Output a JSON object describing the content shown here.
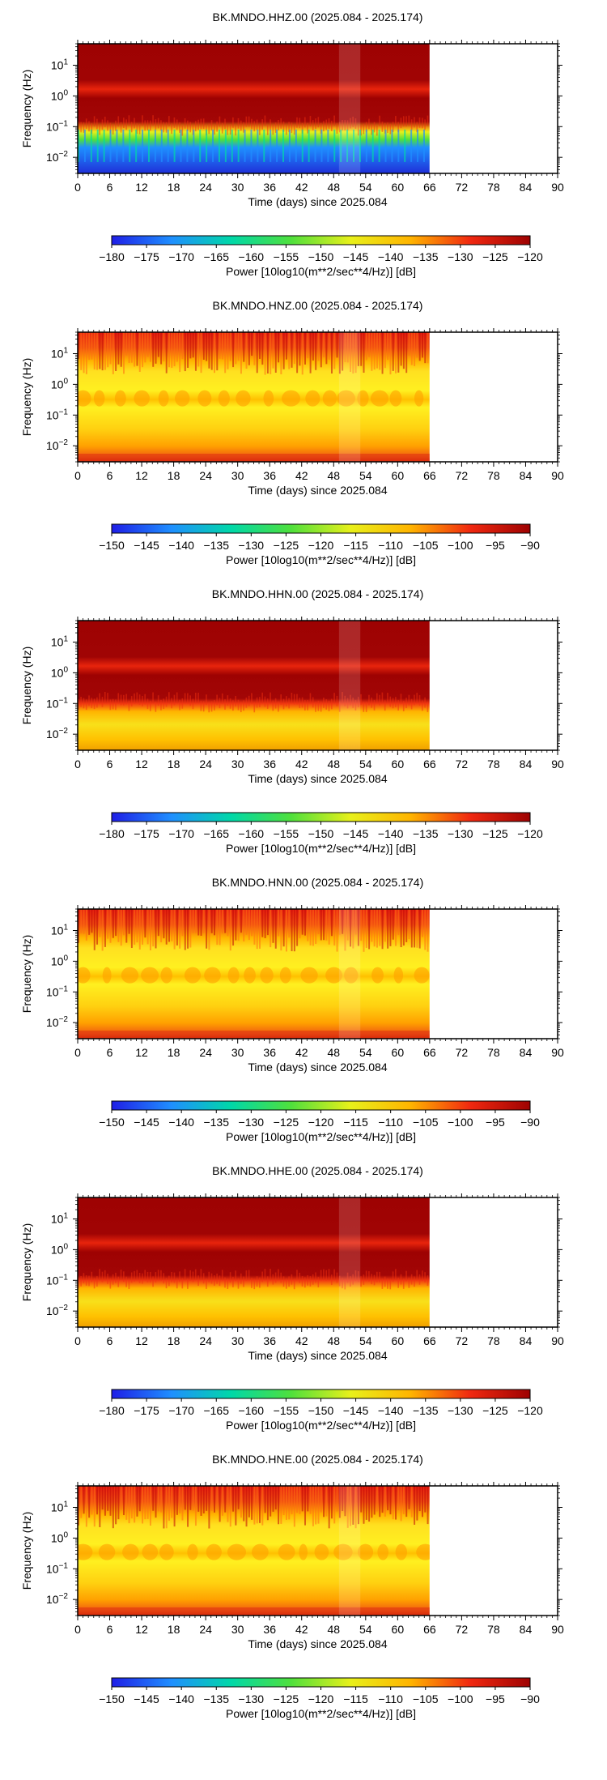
{
  "chart_data": [
    {
      "type": "heatmap",
      "title": "BK.MNDO.HHZ.00 (2025.084 - 2025.174)",
      "xlabel": "Time (days) since 2025.084",
      "ylabel": "Frequency (Hz)",
      "x_ticks": [
        "0",
        "6",
        "12",
        "18",
        "24",
        "30",
        "36",
        "42",
        "48",
        "54",
        "60",
        "66",
        "72",
        "78",
        "84",
        "90"
      ],
      "xlim": [
        0,
        90
      ],
      "y_scale": "log",
      "y_ticks": [
        "10^-2",
        "10^-1",
        "10^0",
        "10^1"
      ],
      "ylim": [
        0.003,
        50
      ],
      "data_extent_days": [
        0,
        66
      ],
      "colorbar": {
        "label": "Power [10log10(m**2/sec**4/Hz)] [dB]",
        "ticks": [
          "-180",
          "-175",
          "-170",
          "-165",
          "-160",
          "-155",
          "-150",
          "-145",
          "-140",
          "-135",
          "-130",
          "-125",
          "-120"
        ],
        "range": [
          -180,
          -120
        ],
        "colors": [
          "#1f1ee6",
          "#1f8fff",
          "#00d8a8",
          "#4fe03c",
          "#e8f01a",
          "#ffb400",
          "#f02810",
          "#9e0202"
        ]
      },
      "colormap": "spectral"
    },
    {
      "type": "heatmap",
      "title": "BK.MNDO.HNZ.00 (2025.084 - 2025.174)",
      "xlabel": "Time (days) since 2025.084",
      "ylabel": "Frequency (Hz)",
      "x_ticks": [
        "0",
        "6",
        "12",
        "18",
        "24",
        "30",
        "36",
        "42",
        "48",
        "54",
        "60",
        "66",
        "72",
        "78",
        "84",
        "90"
      ],
      "xlim": [
        0,
        90
      ],
      "y_scale": "log",
      "y_ticks": [
        "10^-2",
        "10^-1",
        "10^0",
        "10^1"
      ],
      "ylim": [
        0.003,
        50
      ],
      "data_extent_days": [
        0,
        66
      ],
      "colorbar": {
        "label": "Power [10log10(m**2/sec**4/Hz)] [dB]",
        "ticks": [
          "-150",
          "-145",
          "-140",
          "-135",
          "-130",
          "-125",
          "-120",
          "-115",
          "-110",
          "-105",
          "-100",
          "-95",
          "-90"
        ],
        "range": [
          -150,
          -90
        ],
        "colors": [
          "#1f1ee6",
          "#1f8fff",
          "#00d8a8",
          "#4fe03c",
          "#e8f01a",
          "#ffb400",
          "#f02810",
          "#9e0202"
        ]
      },
      "colormap": "accel"
    },
    {
      "type": "heatmap",
      "title": "BK.MNDO.HHN.00 (2025.084 - 2025.174)",
      "xlabel": "Time (days) since 2025.084",
      "ylabel": "Frequency (Hz)",
      "x_ticks": [
        "0",
        "6",
        "12",
        "18",
        "24",
        "30",
        "36",
        "42",
        "48",
        "54",
        "60",
        "66",
        "72",
        "78",
        "84",
        "90"
      ],
      "xlim": [
        0,
        90
      ],
      "y_scale": "log",
      "y_ticks": [
        "10^-2",
        "10^-1",
        "10^0",
        "10^1"
      ],
      "ylim": [
        0.003,
        50
      ],
      "data_extent_days": [
        0,
        66
      ],
      "colorbar": {
        "label": "Power [10log10(m**2/sec**4/Hz)] [dB]",
        "ticks": [
          "-180",
          "-175",
          "-170",
          "-165",
          "-160",
          "-155",
          "-150",
          "-145",
          "-140",
          "-135",
          "-130",
          "-125",
          "-120"
        ],
        "range": [
          -180,
          -120
        ],
        "colors": [
          "#1f1ee6",
          "#1f8fff",
          "#00d8a8",
          "#4fe03c",
          "#e8f01a",
          "#ffb400",
          "#f02810",
          "#9e0202"
        ]
      },
      "colormap": "horiz"
    },
    {
      "type": "heatmap",
      "title": "BK.MNDO.HNN.00 (2025.084 - 2025.174)",
      "xlabel": "Time (days) since 2025.084",
      "ylabel": "Frequency (Hz)",
      "x_ticks": [
        "0",
        "6",
        "12",
        "18",
        "24",
        "30",
        "36",
        "42",
        "48",
        "54",
        "60",
        "66",
        "72",
        "78",
        "84",
        "90"
      ],
      "xlim": [
        0,
        90
      ],
      "y_scale": "log",
      "y_ticks": [
        "10^-2",
        "10^-1",
        "10^0",
        "10^1"
      ],
      "ylim": [
        0.003,
        50
      ],
      "data_extent_days": [
        0,
        66
      ],
      "colorbar": {
        "label": "Power [10log10(m**2/sec**4/Hz)] [dB]",
        "ticks": [
          "-150",
          "-145",
          "-140",
          "-135",
          "-130",
          "-125",
          "-120",
          "-115",
          "-110",
          "-105",
          "-100",
          "-95",
          "-90"
        ],
        "range": [
          -150,
          -90
        ],
        "colors": [
          "#1f1ee6",
          "#1f8fff",
          "#00d8a8",
          "#4fe03c",
          "#e8f01a",
          "#ffb400",
          "#f02810",
          "#9e0202"
        ]
      },
      "colormap": "accel"
    },
    {
      "type": "heatmap",
      "title": "BK.MNDO.HHE.00 (2025.084 - 2025.174)",
      "xlabel": "Time (days) since 2025.084",
      "ylabel": "Frequency (Hz)",
      "x_ticks": [
        "0",
        "6",
        "12",
        "18",
        "24",
        "30",
        "36",
        "42",
        "48",
        "54",
        "60",
        "66",
        "72",
        "78",
        "84",
        "90"
      ],
      "xlim": [
        0,
        90
      ],
      "y_scale": "log",
      "y_ticks": [
        "10^-2",
        "10^-1",
        "10^0",
        "10^1"
      ],
      "ylim": [
        0.003,
        50
      ],
      "data_extent_days": [
        0,
        66
      ],
      "colorbar": {
        "label": "Power [10log10(m**2/sec**4/Hz)] [dB]",
        "ticks": [
          "-180",
          "-175",
          "-170",
          "-165",
          "-160",
          "-155",
          "-150",
          "-145",
          "-140",
          "-135",
          "-130",
          "-125",
          "-120"
        ],
        "range": [
          -180,
          -120
        ],
        "colors": [
          "#1f1ee6",
          "#1f8fff",
          "#00d8a8",
          "#4fe03c",
          "#e8f01a",
          "#ffb400",
          "#f02810",
          "#9e0202"
        ]
      },
      "colormap": "horiz"
    },
    {
      "type": "heatmap",
      "title": "BK.MNDO.HNE.00 (2025.084 - 2025.174)",
      "xlabel": "Time (days) since 2025.084",
      "ylabel": "Frequency (Hz)",
      "x_ticks": [
        "0",
        "6",
        "12",
        "18",
        "24",
        "30",
        "36",
        "42",
        "48",
        "54",
        "60",
        "66",
        "72",
        "78",
        "84",
        "90"
      ],
      "xlim": [
        0,
        90
      ],
      "y_scale": "log",
      "y_ticks": [
        "10^-2",
        "10^-1",
        "10^0",
        "10^1"
      ],
      "ylim": [
        0.003,
        50
      ],
      "data_extent_days": [
        0,
        66
      ],
      "colorbar": {
        "label": "Power [10log10(m**2/sec**4/Hz)] [dB]",
        "ticks": [
          "-150",
          "-145",
          "-140",
          "-135",
          "-130",
          "-125",
          "-120",
          "-115",
          "-110",
          "-105",
          "-100",
          "-95",
          "-90"
        ],
        "range": [
          -150,
          -90
        ],
        "colors": [
          "#1f1ee6",
          "#1f8fff",
          "#00d8a8",
          "#4fe03c",
          "#e8f01a",
          "#ffb400",
          "#f02810",
          "#9e0202"
        ]
      },
      "colormap": "accel"
    }
  ]
}
